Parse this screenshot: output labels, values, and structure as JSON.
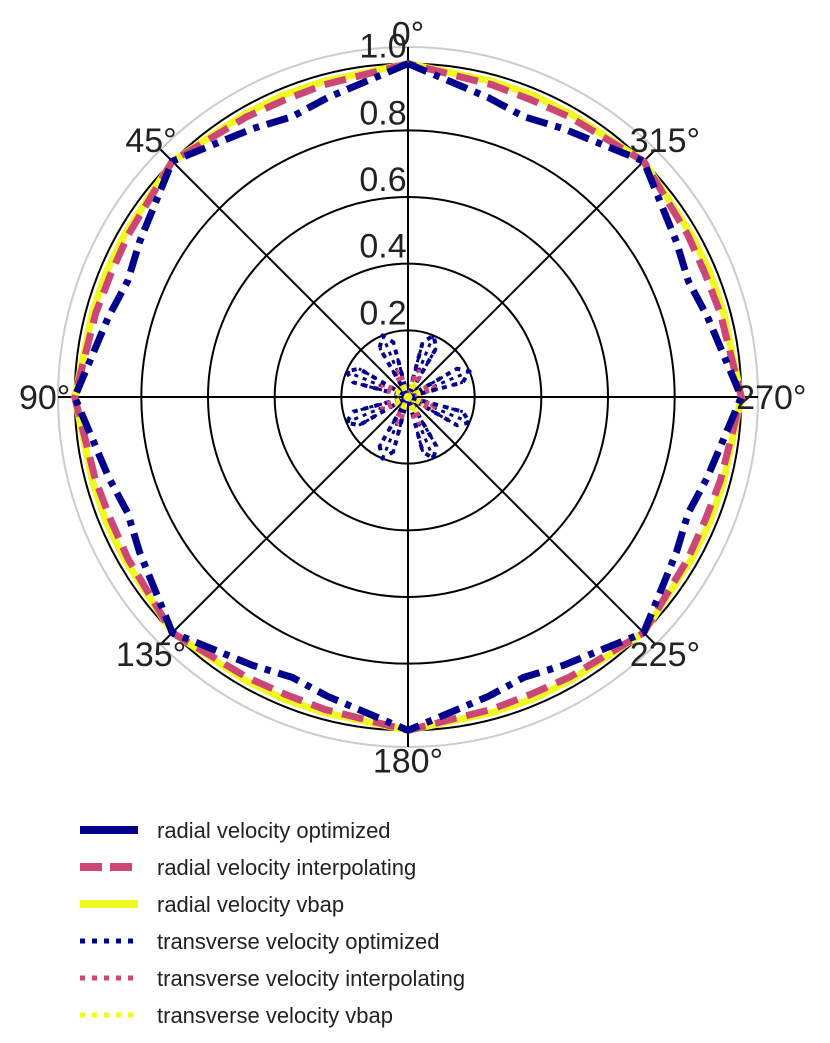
{
  "chart_data": {
    "type": "polar-line",
    "angle_direction": "counterclockwise",
    "zero_location": "top",
    "angle_tick_labels": [
      "0°",
      "45°",
      "90°",
      "135°",
      "180°",
      "225°",
      "270°",
      "315°"
    ],
    "radial_tick_labels": [
      "0.2",
      "0.4",
      "0.6",
      "0.8",
      "1.0"
    ],
    "rlim": [
      0,
      1.05
    ],
    "grid": true,
    "legend_position": "bottom",
    "theta_deg": [
      0,
      15,
      22.5,
      30,
      45,
      60,
      67.5,
      75,
      90,
      105,
      112.5,
      120,
      135,
      150,
      157.5,
      165,
      180,
      195,
      202.5,
      210,
      225,
      240,
      247.5,
      255,
      270,
      285,
      292.5,
      300,
      315,
      330,
      337.5,
      345,
      360
    ],
    "series": [
      {
        "name": "radial velocity optimized",
        "color": "#00008b",
        "style": "dashdot",
        "values": [
          1.0,
          0.93,
          0.91,
          0.93,
          1.0,
          0.93,
          0.91,
          0.93,
          1.0,
          0.93,
          0.91,
          0.93,
          1.0,
          0.93,
          0.91,
          0.93,
          1.0,
          0.93,
          0.91,
          0.93,
          1.0,
          0.93,
          0.91,
          0.93,
          1.0,
          0.93,
          0.91,
          0.93,
          1.0,
          0.93,
          0.91,
          0.93,
          1.0
        ]
      },
      {
        "name": "radial velocity interpolating",
        "color": "#cc4778",
        "style": "dashed",
        "values": [
          1.0,
          0.97,
          0.965,
          0.97,
          1.0,
          0.97,
          0.965,
          0.97,
          1.0,
          0.97,
          0.965,
          0.97,
          1.0,
          0.97,
          0.965,
          0.97,
          1.0,
          0.97,
          0.965,
          0.97,
          1.0,
          0.97,
          0.965,
          0.97,
          1.0,
          0.97,
          0.965,
          0.97,
          1.0,
          0.97,
          0.965,
          0.97,
          1.0
        ]
      },
      {
        "name": "radial velocity vbap",
        "color": "#f0f921",
        "style": "solid",
        "values": [
          1.0,
          0.98,
          0.98,
          0.98,
          1.0,
          0.98,
          0.98,
          0.98,
          1.0,
          0.98,
          0.98,
          0.98,
          1.0,
          0.98,
          0.98,
          0.98,
          1.0,
          0.98,
          0.98,
          0.98,
          1.0,
          0.98,
          0.98,
          0.98,
          1.0,
          0.98,
          0.98,
          0.98,
          1.0,
          0.98,
          0.98,
          0.98,
          1.0
        ]
      },
      {
        "name": "transverse velocity optimized",
        "color": "#00008b",
        "style": "dotted",
        "values": [
          0.0,
          0.17,
          0.2,
          0.17,
          0.0,
          0.17,
          0.2,
          0.17,
          0.0,
          0.17,
          0.2,
          0.17,
          0.0,
          0.17,
          0.2,
          0.17,
          0.0,
          0.17,
          0.2,
          0.17,
          0.0,
          0.17,
          0.2,
          0.17,
          0.0,
          0.17,
          0.2,
          0.17,
          0.0,
          0.17,
          0.2,
          0.17,
          0.0
        ]
      },
      {
        "name": "transverse velocity interpolating",
        "color": "#cc4778",
        "style": "dotted",
        "values": [
          0.0,
          0.07,
          0.09,
          0.07,
          0.0,
          0.07,
          0.09,
          0.07,
          0.0,
          0.07,
          0.09,
          0.07,
          0.0,
          0.07,
          0.09,
          0.07,
          0.0,
          0.07,
          0.09,
          0.07,
          0.0,
          0.07,
          0.09,
          0.07,
          0.0,
          0.07,
          0.09,
          0.07,
          0.0,
          0.07,
          0.09,
          0.07,
          0.0
        ]
      },
      {
        "name": "transverse velocity vbap",
        "color": "#f0f921",
        "style": "dotted",
        "values": [
          0.0,
          0.04,
          0.05,
          0.04,
          0.0,
          0.04,
          0.05,
          0.04,
          0.0,
          0.04,
          0.05,
          0.04,
          0.0,
          0.04,
          0.05,
          0.04,
          0.0,
          0.04,
          0.05,
          0.04,
          0.0,
          0.04,
          0.05,
          0.04,
          0.0,
          0.04,
          0.05,
          0.04,
          0.0,
          0.04,
          0.05,
          0.04,
          0.0
        ]
      }
    ]
  }
}
